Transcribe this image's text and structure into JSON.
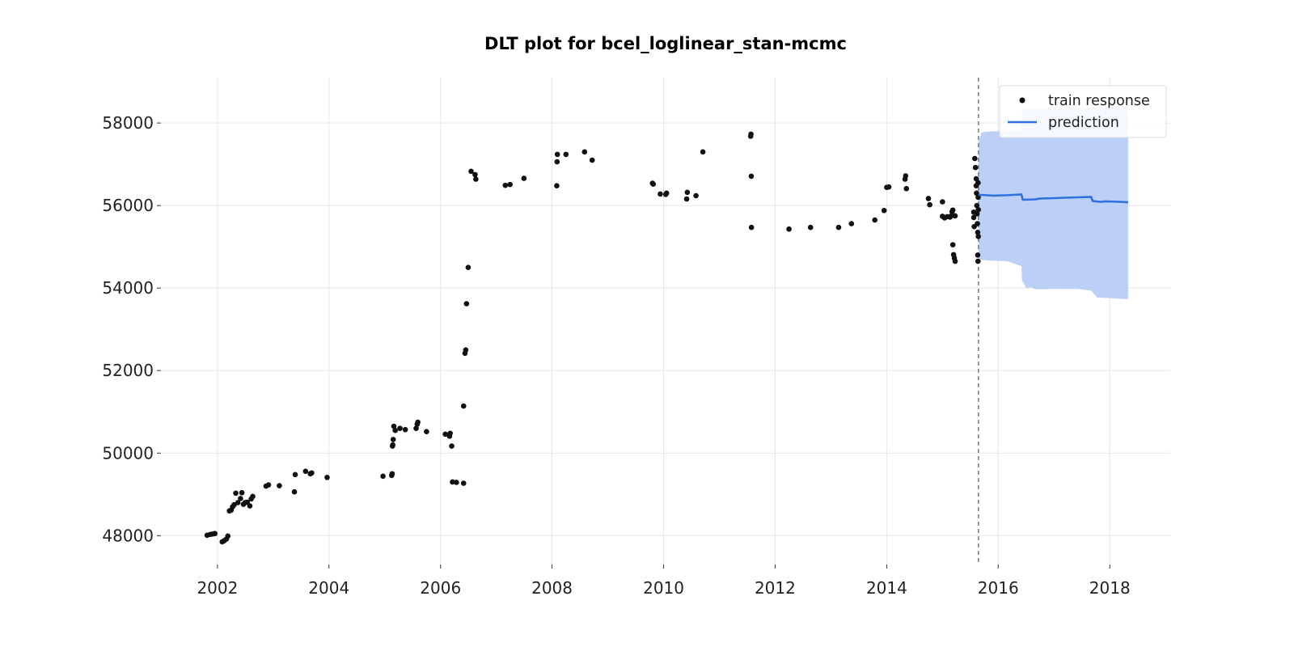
{
  "chart_data": {
    "type": "scatter",
    "title": "DLT plot for bcel_loglinear_stan-mcmc",
    "xlabel": "",
    "ylabel": "",
    "xlim": [
      "2001-01-01",
      "2019-02-01"
    ],
    "ylim": [
      47300,
      59100
    ],
    "x_ticks": [
      "2002-01-01",
      "2004-01-01",
      "2006-01-01",
      "2008-01-01",
      "2010-01-01",
      "2012-01-01",
      "2014-01-01",
      "2016-01-01",
      "2018-01-01"
    ],
    "x_tick_labels": [
      "2002",
      "2004",
      "2006",
      "2008",
      "2010",
      "2012",
      "2014",
      "2016",
      "2018"
    ],
    "y_ticks": [
      48000,
      50000,
      52000,
      54000,
      56000,
      58000
    ],
    "y_tick_labels": [
      "48000",
      "50000",
      "52000",
      "54000",
      "56000",
      "58000"
    ],
    "grid": true,
    "legend": {
      "position": "top-right",
      "entries": [
        "train response",
        "prediction"
      ]
    },
    "colors": {
      "train_response": "#111111",
      "prediction_line": "#2f6fe0",
      "interval_fill": "#bcd0f7",
      "cutoff_line": "#666666"
    },
    "cutoff_date": "2015-08-25",
    "series": [
      {
        "name": "train response",
        "type": "scatter",
        "points": [
          [
            "2001-10-25",
            48010
          ],
          [
            "2001-11-15",
            48030
          ],
          [
            "2001-12-01",
            48040
          ],
          [
            "2001-12-15",
            48050
          ],
          [
            "2002-02-01",
            47850
          ],
          [
            "2002-02-15",
            47880
          ],
          [
            "2002-03-01",
            47920
          ],
          [
            "2002-03-10",
            47990
          ],
          [
            "2002-03-20",
            48600
          ],
          [
            "2002-04-01",
            48620
          ],
          [
            "2002-04-10",
            48700
          ],
          [
            "2002-04-20",
            48750
          ],
          [
            "2002-05-01",
            49030
          ],
          [
            "2002-05-15",
            48800
          ],
          [
            "2002-06-01",
            48900
          ],
          [
            "2002-06-10",
            49040
          ],
          [
            "2002-06-20",
            48760
          ],
          [
            "2002-07-01",
            48800
          ],
          [
            "2002-07-15",
            48810
          ],
          [
            "2002-08-01",
            48720
          ],
          [
            "2002-08-10",
            48890
          ],
          [
            "2002-08-20",
            48950
          ],
          [
            "2002-11-15",
            49200
          ],
          [
            "2002-12-01",
            49230
          ],
          [
            "2003-02-10",
            49210
          ],
          [
            "2003-05-20",
            49060
          ],
          [
            "2003-05-25",
            49480
          ],
          [
            "2003-08-01",
            49560
          ],
          [
            "2003-09-01",
            49500
          ],
          [
            "2003-09-10",
            49520
          ],
          [
            "2003-12-20",
            49410
          ],
          [
            "2004-12-20",
            49440
          ],
          [
            "2005-02-15",
            49460
          ],
          [
            "2005-02-18",
            49500
          ],
          [
            "2005-02-20",
            50170
          ],
          [
            "2005-02-22",
            50200
          ],
          [
            "2005-02-25",
            50330
          ],
          [
            "2005-03-01",
            50650
          ],
          [
            "2005-03-10",
            50550
          ],
          [
            "2005-04-10",
            50600
          ],
          [
            "2005-05-15",
            50570
          ],
          [
            "2005-07-25",
            50600
          ],
          [
            "2005-08-01",
            50700
          ],
          [
            "2005-08-05",
            50750
          ],
          [
            "2005-10-01",
            50520
          ],
          [
            "2006-02-01",
            50460
          ],
          [
            "2006-03-01",
            50410
          ],
          [
            "2006-03-05",
            50480
          ],
          [
            "2006-03-15",
            50170
          ],
          [
            "2006-03-20",
            49300
          ],
          [
            "2006-04-15",
            49290
          ],
          [
            "2006-06-01",
            49270
          ],
          [
            "2006-06-01",
            51140
          ],
          [
            "2006-06-10",
            52420
          ],
          [
            "2006-06-15",
            52500
          ],
          [
            "2006-06-20",
            53620
          ],
          [
            "2006-07-01",
            54500
          ],
          [
            "2006-07-20",
            56830
          ],
          [
            "2006-08-15",
            56750
          ],
          [
            "2006-08-20",
            56640
          ],
          [
            "2007-03-01",
            56490
          ],
          [
            "2007-04-01",
            56510
          ],
          [
            "2007-07-01",
            56660
          ],
          [
            "2008-02-01",
            56480
          ],
          [
            "2008-02-03",
            57060
          ],
          [
            "2008-02-05",
            57240
          ],
          [
            "2008-04-01",
            57240
          ],
          [
            "2008-08-01",
            57300
          ],
          [
            "2008-09-20",
            57100
          ],
          [
            "2009-10-20",
            56540
          ],
          [
            "2009-10-25",
            56520
          ],
          [
            "2009-12-10",
            56280
          ],
          [
            "2010-01-15",
            56270
          ],
          [
            "2010-01-20",
            56300
          ],
          [
            "2010-06-01",
            56160
          ],
          [
            "2010-06-05",
            56320
          ],
          [
            "2010-08-01",
            56240
          ],
          [
            "2010-09-15",
            57300
          ],
          [
            "2011-07-25",
            57680
          ],
          [
            "2011-07-27",
            57730
          ],
          [
            "2011-07-29",
            56710
          ],
          [
            "2011-07-30",
            55470
          ],
          [
            "2012-04-01",
            55430
          ],
          [
            "2012-08-20",
            55470
          ],
          [
            "2013-02-20",
            55470
          ],
          [
            "2013-05-15",
            55560
          ],
          [
            "2013-10-15",
            55650
          ],
          [
            "2013-12-15",
            55880
          ],
          [
            "2014-01-01",
            56440
          ],
          [
            "2014-01-15",
            56450
          ],
          [
            "2014-05-01",
            56640
          ],
          [
            "2014-05-05",
            56720
          ],
          [
            "2014-05-10",
            56410
          ],
          [
            "2014-10-01",
            56170
          ],
          [
            "2014-10-10",
            56020
          ],
          [
            "2015-01-01",
            56090
          ],
          [
            "2015-01-01",
            55740
          ],
          [
            "2015-01-15",
            55700
          ],
          [
            "2015-02-01",
            55730
          ],
          [
            "2015-02-20",
            55720
          ],
          [
            "2015-03-01",
            55760
          ],
          [
            "2015-03-05",
            55850
          ],
          [
            "2015-03-10",
            55890
          ],
          [
            "2015-03-10",
            55050
          ],
          [
            "2015-03-15",
            54810
          ],
          [
            "2015-03-20",
            54730
          ],
          [
            "2015-03-25",
            54650
          ],
          [
            "2015-03-25",
            55750
          ],
          [
            "2015-07-25",
            55840
          ],
          [
            "2015-07-25",
            55710
          ],
          [
            "2015-07-28",
            55490
          ],
          [
            "2015-08-01",
            57140
          ],
          [
            "2015-08-05",
            56920
          ],
          [
            "2015-08-10",
            56650
          ],
          [
            "2015-08-10",
            56480
          ],
          [
            "2015-08-12",
            56300
          ],
          [
            "2015-08-14",
            56000
          ],
          [
            "2015-08-16",
            55800
          ],
          [
            "2015-08-18",
            55560
          ],
          [
            "2015-08-20",
            55350
          ],
          [
            "2015-08-20",
            54800
          ],
          [
            "2015-08-22",
            54650
          ],
          [
            "2015-08-22",
            56550
          ],
          [
            "2015-08-23",
            56200
          ],
          [
            "2015-08-24",
            55900
          ],
          [
            "2015-08-24",
            55250
          ]
        ]
      },
      {
        "name": "prediction",
        "type": "line",
        "points": [
          [
            "2015-08-25",
            56270
          ],
          [
            "2015-09-01",
            56260
          ],
          [
            "2015-12-01",
            56240
          ],
          [
            "2016-03-01",
            56250
          ],
          [
            "2016-06-01",
            56270
          ],
          [
            "2016-06-10",
            56140
          ],
          [
            "2016-09-01",
            56150
          ],
          [
            "2016-10-01",
            56170
          ],
          [
            "2017-01-01",
            56180
          ],
          [
            "2017-03-01",
            56190
          ],
          [
            "2017-06-01",
            56200
          ],
          [
            "2017-09-01",
            56210
          ],
          [
            "2017-09-10",
            56110
          ],
          [
            "2017-11-01",
            56090
          ],
          [
            "2017-12-01",
            56100
          ],
          [
            "2018-03-01",
            56090
          ],
          [
            "2018-05-01",
            56080
          ]
        ]
      },
      {
        "name": "prediction interval",
        "type": "area",
        "points": [
          [
            "2015-08-25",
            54720,
            57550
          ],
          [
            "2015-09-15",
            54680,
            57780
          ],
          [
            "2015-12-01",
            54660,
            57800
          ],
          [
            "2016-03-01",
            54650,
            57800
          ],
          [
            "2016-06-01",
            54530,
            57820
          ],
          [
            "2016-06-05",
            54200,
            58340
          ],
          [
            "2016-07-01",
            54000,
            58360
          ],
          [
            "2016-08-01",
            54020,
            58340
          ],
          [
            "2016-09-01",
            53970,
            58340
          ],
          [
            "2017-01-01",
            53980,
            58340
          ],
          [
            "2017-06-01",
            53980,
            58350
          ],
          [
            "2017-09-01",
            53940,
            58350
          ],
          [
            "2017-10-10",
            53770,
            58370
          ],
          [
            "2017-12-01",
            53760,
            58380
          ],
          [
            "2018-05-01",
            53730,
            58390
          ]
        ]
      }
    ]
  }
}
